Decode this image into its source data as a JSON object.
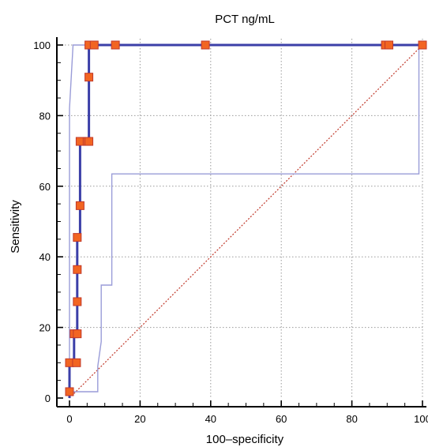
{
  "chart_data": {
    "type": "line",
    "title": "PCT ng/mL",
    "xlabel": "100–specificity",
    "ylabel": "Sensitivity",
    "xlim": [
      0,
      100
    ],
    "ylim": [
      0,
      100
    ],
    "x_ticks": [
      "0",
      "20",
      "40",
      "60",
      "80",
      "100"
    ],
    "y_ticks": [
      "0",
      "20",
      "40",
      "60",
      "80",
      "100"
    ],
    "grid": true,
    "legend": "none",
    "colors": {
      "roc": "#3b3fa8",
      "ci": "#9a9cd8",
      "marker_fill": "#f26522",
      "marker_edge": "#c0392b",
      "diagonal": "#c0392b",
      "grid": "#9a9a9a"
    },
    "series": [
      {
        "points": [
          [
            0,
            0
          ],
          [
            0,
            1.8
          ],
          [
            0,
            10
          ],
          [
            1.3,
            10
          ],
          [
            1.3,
            18.2
          ],
          [
            2.2,
            18.2
          ],
          [
            2.2,
            27.3
          ],
          [
            2.2,
            36.4
          ],
          [
            2.2,
            45.5
          ],
          [
            3,
            45.5
          ],
          [
            3,
            54.5
          ],
          [
            3,
            72.7
          ],
          [
            5,
            72.7
          ],
          [
            5.5,
            72.7
          ],
          [
            5.5,
            90.9
          ],
          [
            5.5,
            100
          ],
          [
            7,
            100
          ],
          [
            13,
            100
          ],
          [
            38.5,
            100
          ],
          [
            89.5,
            100
          ],
          [
            90.5,
            100
          ],
          [
            100,
            100
          ]
        ],
        "markers": [
          [
            0,
            1.8
          ],
          [
            0,
            10
          ],
          [
            2,
            10
          ],
          [
            1.3,
            18.2
          ],
          [
            2.2,
            18.2
          ],
          [
            2.2,
            27.3
          ],
          [
            2.2,
            36.4
          ],
          [
            2.2,
            45.5
          ],
          [
            3,
            54.5
          ],
          [
            3,
            72.7
          ],
          [
            5,
            72.7
          ],
          [
            5.5,
            72.7
          ],
          [
            5.5,
            90.9
          ],
          [
            5.5,
            100
          ],
          [
            7,
            100
          ],
          [
            13,
            100
          ],
          [
            38.5,
            100
          ],
          [
            89.5,
            100
          ],
          [
            90.5,
            100
          ],
          [
            100,
            100
          ]
        ]
      },
      {
        "points": [
          [
            0,
            0
          ],
          [
            0,
            82
          ],
          [
            1,
            100
          ],
          [
            100,
            100
          ]
        ]
      },
      {
        "points": [
          [
            0,
            1.8
          ],
          [
            8,
            1.8
          ],
          [
            8,
            9
          ],
          [
            9,
            16
          ],
          [
            9,
            32
          ],
          [
            12,
            32
          ],
          [
            12,
            63.5
          ],
          [
            99,
            63.5
          ],
          [
            99,
            100
          ],
          [
            100,
            100
          ]
        ]
      },
      {
        "points": [
          [
            0,
            0
          ],
          [
            100,
            100
          ]
        ]
      }
    ]
  }
}
